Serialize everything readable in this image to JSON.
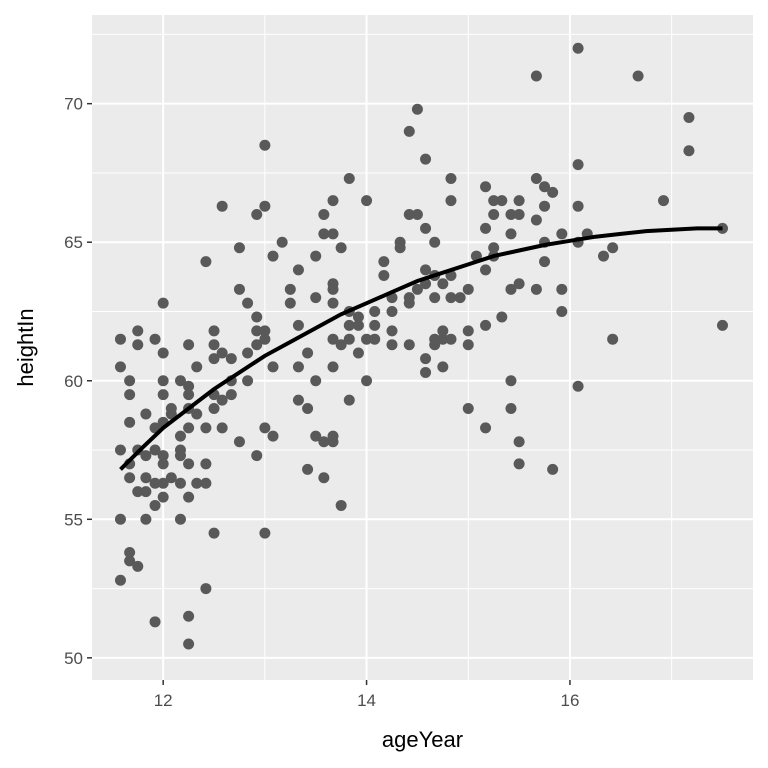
{
  "chart_data": {
    "type": "scatter",
    "title": "",
    "xlabel": "ageYear",
    "ylabel": "heightIn",
    "xlim": [
      11.3,
      17.8
    ],
    "ylim": [
      49.2,
      73.2
    ],
    "x_ticks": [
      12,
      14,
      16
    ],
    "x_tick_labels": [
      "12",
      "14",
      "16"
    ],
    "y_ticks": [
      50,
      55,
      60,
      65,
      70
    ],
    "y_tick_labels": [
      "50",
      "55",
      "60",
      "65",
      "70"
    ],
    "grid": true,
    "legend": "none",
    "colors": {
      "panel_background": "#ebebeb",
      "grid": "#ffffff",
      "points": "#595959",
      "fit_line": "#000000",
      "tick_text": "#4d4d4d"
    },
    "points": [
      [
        11.58,
        52.8
      ],
      [
        11.58,
        55.0
      ],
      [
        11.58,
        57.5
      ],
      [
        11.58,
        60.5
      ],
      [
        11.58,
        61.5
      ],
      [
        11.67,
        53.5
      ],
      [
        11.67,
        53.8
      ],
      [
        11.67,
        56.5
      ],
      [
        11.67,
        57.0
      ],
      [
        11.67,
        58.5
      ],
      [
        11.67,
        59.5
      ],
      [
        11.67,
        60.0
      ],
      [
        11.75,
        53.3
      ],
      [
        11.75,
        56.0
      ],
      [
        11.75,
        57.5
      ],
      [
        11.75,
        61.3
      ],
      [
        11.75,
        61.8
      ],
      [
        11.83,
        55.0
      ],
      [
        11.83,
        56.0
      ],
      [
        11.83,
        56.5
      ],
      [
        11.83,
        57.3
      ],
      [
        11.83,
        58.8
      ],
      [
        11.92,
        51.3
      ],
      [
        11.92,
        55.5
      ],
      [
        11.92,
        56.3
      ],
      [
        11.92,
        57.5
      ],
      [
        11.92,
        58.3
      ],
      [
        11.92,
        61.5
      ],
      [
        12.0,
        55.8
      ],
      [
        12.0,
        56.3
      ],
      [
        12.0,
        57.0
      ],
      [
        12.0,
        57.3
      ],
      [
        12.0,
        58.5
      ],
      [
        12.0,
        59.5
      ],
      [
        12.0,
        60.0
      ],
      [
        12.0,
        61.0
      ],
      [
        12.0,
        62.8
      ],
      [
        12.08,
        56.5
      ],
      [
        12.08,
        58.8
      ],
      [
        12.08,
        59.0
      ],
      [
        12.17,
        55.0
      ],
      [
        12.17,
        56.3
      ],
      [
        12.17,
        57.3
      ],
      [
        12.17,
        57.5
      ],
      [
        12.17,
        58.0
      ],
      [
        12.17,
        60.0
      ],
      [
        12.25,
        50.5
      ],
      [
        12.25,
        51.5
      ],
      [
        12.25,
        55.8
      ],
      [
        12.25,
        57.0
      ],
      [
        12.25,
        58.3
      ],
      [
        12.25,
        59.0
      ],
      [
        12.25,
        59.5
      ],
      [
        12.25,
        59.8
      ],
      [
        12.25,
        61.3
      ],
      [
        12.33,
        56.3
      ],
      [
        12.33,
        58.8
      ],
      [
        12.33,
        60.5
      ],
      [
        12.42,
        52.5
      ],
      [
        12.42,
        56.3
      ],
      [
        12.42,
        57.0
      ],
      [
        12.42,
        58.3
      ],
      [
        12.42,
        64.3
      ],
      [
        12.5,
        54.5
      ],
      [
        12.5,
        59.0
      ],
      [
        12.5,
        59.5
      ],
      [
        12.5,
        60.8
      ],
      [
        12.5,
        61.3
      ],
      [
        12.5,
        61.8
      ],
      [
        12.58,
        58.3
      ],
      [
        12.58,
        59.3
      ],
      [
        12.58,
        61.0
      ],
      [
        12.58,
        66.3
      ],
      [
        12.67,
        59.5
      ],
      [
        12.67,
        60.0
      ],
      [
        12.67,
        60.8
      ],
      [
        12.75,
        57.8
      ],
      [
        12.75,
        63.3
      ],
      [
        12.75,
        64.8
      ],
      [
        12.83,
        60.0
      ],
      [
        12.83,
        61.0
      ],
      [
        12.83,
        62.8
      ],
      [
        12.92,
        57.3
      ],
      [
        12.92,
        61.3
      ],
      [
        12.92,
        61.8
      ],
      [
        12.92,
        62.3
      ],
      [
        12.92,
        66.0
      ],
      [
        13.0,
        54.5
      ],
      [
        13.0,
        58.3
      ],
      [
        13.0,
        61.5
      ],
      [
        13.0,
        61.8
      ],
      [
        13.0,
        66.3
      ],
      [
        13.0,
        68.5
      ],
      [
        13.08,
        58.0
      ],
      [
        13.08,
        60.5
      ],
      [
        13.08,
        64.5
      ],
      [
        13.17,
        65.0
      ],
      [
        13.25,
        62.8
      ],
      [
        13.25,
        63.3
      ],
      [
        13.33,
        59.3
      ],
      [
        13.33,
        60.5
      ],
      [
        13.33,
        62.0
      ],
      [
        13.33,
        64.0
      ],
      [
        13.42,
        56.8
      ],
      [
        13.42,
        59.0
      ],
      [
        13.42,
        61.0
      ],
      [
        13.5,
        58.0
      ],
      [
        13.5,
        60.0
      ],
      [
        13.5,
        63.0
      ],
      [
        13.5,
        64.5
      ],
      [
        13.58,
        56.5
      ],
      [
        13.58,
        57.8
      ],
      [
        13.58,
        65.3
      ],
      [
        13.58,
        66.0
      ],
      [
        13.67,
        57.8
      ],
      [
        13.67,
        58.0
      ],
      [
        13.67,
        60.5
      ],
      [
        13.67,
        61.5
      ],
      [
        13.67,
        62.8
      ],
      [
        13.67,
        63.3
      ],
      [
        13.67,
        63.5
      ],
      [
        13.67,
        65.3
      ],
      [
        13.67,
        66.5
      ],
      [
        13.75,
        55.5
      ],
      [
        13.75,
        61.3
      ],
      [
        13.75,
        64.8
      ],
      [
        13.83,
        59.3
      ],
      [
        13.83,
        61.5
      ],
      [
        13.83,
        62.0
      ],
      [
        13.83,
        62.5
      ],
      [
        13.83,
        67.3
      ],
      [
        13.92,
        61.0
      ],
      [
        13.92,
        62.0
      ],
      [
        13.92,
        62.3
      ],
      [
        14.0,
        60.0
      ],
      [
        14.0,
        61.5
      ],
      [
        14.0,
        66.5
      ],
      [
        14.08,
        61.5
      ],
      [
        14.08,
        62.0
      ],
      [
        14.08,
        62.5
      ],
      [
        14.17,
        63.8
      ],
      [
        14.17,
        64.3
      ],
      [
        14.25,
        61.3
      ],
      [
        14.25,
        61.8
      ],
      [
        14.25,
        62.5
      ],
      [
        14.25,
        63.0
      ],
      [
        14.33,
        64.8
      ],
      [
        14.33,
        65.0
      ],
      [
        14.42,
        61.3
      ],
      [
        14.42,
        62.8
      ],
      [
        14.42,
        63.0
      ],
      [
        14.42,
        66.0
      ],
      [
        14.42,
        69.0
      ],
      [
        14.5,
        63.3
      ],
      [
        14.5,
        66.0
      ],
      [
        14.5,
        69.8
      ],
      [
        14.58,
        60.3
      ],
      [
        14.58,
        60.8
      ],
      [
        14.58,
        63.5
      ],
      [
        14.58,
        64.0
      ],
      [
        14.58,
        65.5
      ],
      [
        14.58,
        68.0
      ],
      [
        14.67,
        61.3
      ],
      [
        14.67,
        61.5
      ],
      [
        14.67,
        63.0
      ],
      [
        14.67,
        63.8
      ],
      [
        14.67,
        65.0
      ],
      [
        14.75,
        60.5
      ],
      [
        14.75,
        61.5
      ],
      [
        14.75,
        61.8
      ],
      [
        14.75,
        63.5
      ],
      [
        14.83,
        61.5
      ],
      [
        14.83,
        63.0
      ],
      [
        14.83,
        63.8
      ],
      [
        14.83,
        66.5
      ],
      [
        14.83,
        67.3
      ],
      [
        14.92,
        63.0
      ],
      [
        15.0,
        59.0
      ],
      [
        15.0,
        61.3
      ],
      [
        15.0,
        61.8
      ],
      [
        15.0,
        63.3
      ],
      [
        15.08,
        64.5
      ],
      [
        15.17,
        58.3
      ],
      [
        15.17,
        62.0
      ],
      [
        15.17,
        64.0
      ],
      [
        15.17,
        65.5
      ],
      [
        15.17,
        67.0
      ],
      [
        15.25,
        64.5
      ],
      [
        15.25,
        64.8
      ],
      [
        15.25,
        66.0
      ],
      [
        15.25,
        66.5
      ],
      [
        15.33,
        62.3
      ],
      [
        15.33,
        66.5
      ],
      [
        15.42,
        59.0
      ],
      [
        15.42,
        60.0
      ],
      [
        15.42,
        63.3
      ],
      [
        15.42,
        65.3
      ],
      [
        15.42,
        66.0
      ],
      [
        15.5,
        57.0
      ],
      [
        15.5,
        57.8
      ],
      [
        15.5,
        63.5
      ],
      [
        15.5,
        66.0
      ],
      [
        15.5,
        66.5
      ],
      [
        15.67,
        63.3
      ],
      [
        15.67,
        65.8
      ],
      [
        15.67,
        67.3
      ],
      [
        15.67,
        71.0
      ],
      [
        15.75,
        64.3
      ],
      [
        15.75,
        65.0
      ],
      [
        15.75,
        66.3
      ],
      [
        15.75,
        67.0
      ],
      [
        15.83,
        56.8
      ],
      [
        15.83,
        66.8
      ],
      [
        15.92,
        62.5
      ],
      [
        15.92,
        63.3
      ],
      [
        15.92,
        65.3
      ],
      [
        16.08,
        59.8
      ],
      [
        16.08,
        65.0
      ],
      [
        16.08,
        66.3
      ],
      [
        16.08,
        67.8
      ],
      [
        16.08,
        72.0
      ],
      [
        16.17,
        65.3
      ],
      [
        16.33,
        64.5
      ],
      [
        16.42,
        61.5
      ],
      [
        16.42,
        64.8
      ],
      [
        16.67,
        71.0
      ],
      [
        16.92,
        66.5
      ],
      [
        17.17,
        68.3
      ],
      [
        17.17,
        69.5
      ],
      [
        17.5,
        62.0
      ],
      [
        17.5,
        65.5
      ]
    ],
    "fit_line": {
      "x": [
        11.58,
        11.8,
        12.0,
        12.25,
        12.5,
        12.75,
        13.0,
        13.25,
        13.5,
        13.75,
        14.0,
        14.25,
        14.5,
        14.75,
        15.0,
        15.25,
        15.5,
        15.75,
        16.0,
        16.25,
        16.5,
        16.75,
        17.0,
        17.25,
        17.5
      ],
      "y": [
        56.8,
        57.6,
        58.3,
        59.0,
        59.7,
        60.3,
        60.9,
        61.4,
        61.9,
        62.4,
        62.8,
        63.2,
        63.6,
        63.9,
        64.2,
        64.5,
        64.7,
        64.9,
        65.05,
        65.2,
        65.3,
        65.4,
        65.45,
        65.5,
        65.5
      ]
    }
  }
}
